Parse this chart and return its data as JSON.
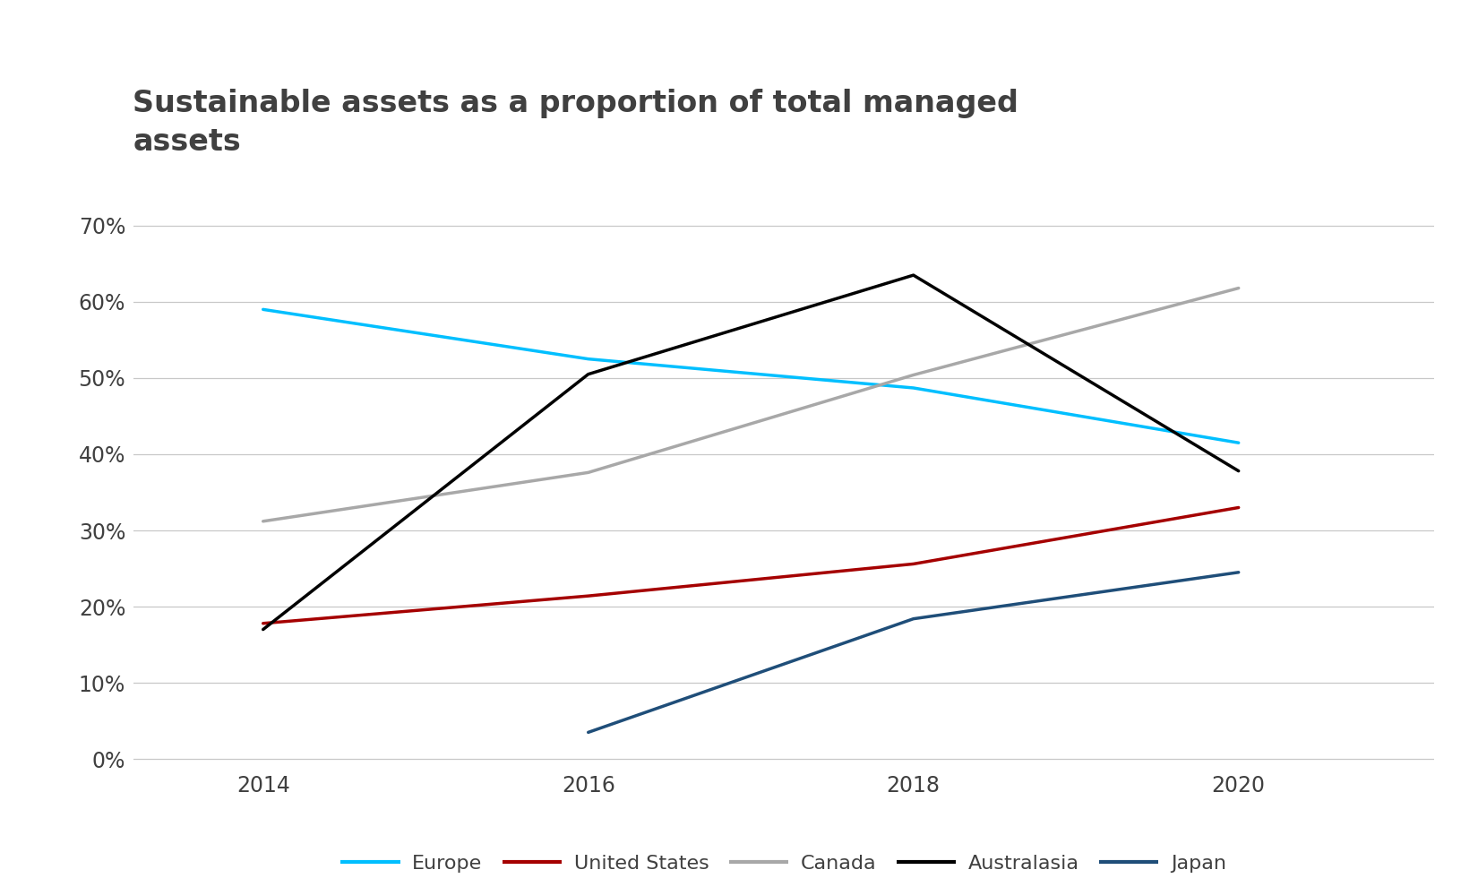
{
  "title": "Sustainable assets as a proportion of total managed\nassets",
  "x_values": [
    2014,
    2016,
    2018,
    2020
  ],
  "series": {
    "Europe": {
      "values": [
        0.59,
        0.525,
        0.487,
        0.415
      ],
      "color": "#00BFFF",
      "linewidth": 2.5
    },
    "United States": {
      "values": [
        0.178,
        0.214,
        0.256,
        0.33
      ],
      "color": "#A50000",
      "linewidth": 2.5
    },
    "Canada": {
      "values": [
        0.312,
        0.376,
        0.504,
        0.618
      ],
      "color": "#A8A8A8",
      "linewidth": 2.5
    },
    "Australasia": {
      "values": [
        0.17,
        0.505,
        0.635,
        0.378
      ],
      "color": "#000000",
      "linewidth": 2.5
    },
    "Japan": {
      "values": [
        null,
        0.035,
        0.184,
        0.245
      ],
      "color": "#1F4E79",
      "linewidth": 2.5
    }
  },
  "xlim": [
    2013.2,
    2021.2
  ],
  "ylim": [
    -0.005,
    0.74
  ],
  "yticks": [
    0.0,
    0.1,
    0.2,
    0.3,
    0.4,
    0.5,
    0.6,
    0.7
  ],
  "xticks": [
    2014,
    2016,
    2018,
    2020
  ],
  "background_color": "#FFFFFF",
  "grid_color": "#C8C8C8",
  "title_fontsize": 24,
  "tick_fontsize": 17,
  "legend_fontsize": 16,
  "title_color": "#404040",
  "tick_color": "#404040",
  "legend_color": "#404040"
}
